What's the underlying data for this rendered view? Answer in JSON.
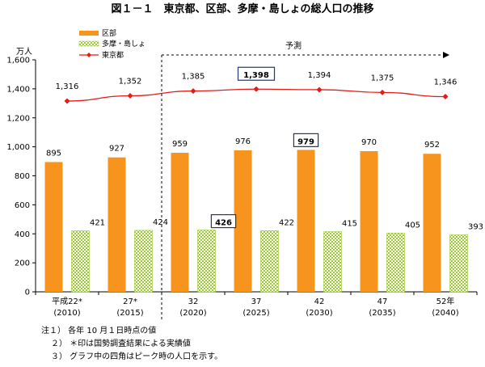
{
  "chart_data": {
    "type": "bar",
    "title": "図１－１　東京都、区部、多摩・島しょの総人口の推移",
    "ylabel": "万人",
    "ylim": [
      0,
      1600
    ],
    "yticks": [
      0,
      200,
      400,
      600,
      800,
      1000,
      1200,
      1400,
      1600
    ],
    "ytick_labels": [
      "0",
      "200",
      "400",
      "600",
      "800",
      "1,000",
      "1,200",
      "1,400",
      "1,600"
    ],
    "categories": [
      "平成22年 (2010)",
      "27年 (2015)",
      "32年 (2020)",
      "37年 (2025)",
      "42年 (2030)",
      "47年 (2035)",
      "52年 (2040)"
    ],
    "category_labels_top": [
      "平成22*",
      "27*",
      "32",
      "37",
      "42",
      "47",
      "52年"
    ],
    "category_labels_bottom": [
      "(2010)",
      "(2015)",
      "(2020)",
      "(2025)",
      "(2030)",
      "(2035)",
      "(2040)"
    ],
    "projection_label": "予測",
    "projection_start_index": 2,
    "series": [
      {
        "name": "区部",
        "kind": "bar",
        "color": "#f7941d",
        "values": [
          895,
          927,
          959,
          976,
          979,
          970,
          952
        ],
        "labels": [
          "895",
          "927",
          "959",
          "976",
          "979",
          "970",
          "952"
        ],
        "peak_index": 4
      },
      {
        "name": "多摩・島しょ",
        "kind": "bar",
        "color": "#9acd32",
        "values": [
          421,
          424,
          426,
          422,
          415,
          405,
          393
        ],
        "labels": [
          "421",
          "424",
          "426",
          "422",
          "415",
          "405",
          "393"
        ],
        "peak_index": 2
      },
      {
        "name": "東京都",
        "kind": "line",
        "color": "#e41b17",
        "values": [
          1316,
          1352,
          1385,
          1398,
          1394,
          1375,
          1346
        ],
        "labels": [
          "1,316",
          "1,352",
          "1,385",
          "1,398",
          "1,394",
          "1,375",
          "1,346"
        ],
        "peak_index": 3
      }
    ],
    "legend_position": "top-left"
  },
  "notes": [
    "注１） 各年 10 月１日時点の値",
    "２） ＊印は国勢調査結果による実績値",
    "３） グラフ中の四角はピーク時の人口を示す。"
  ]
}
